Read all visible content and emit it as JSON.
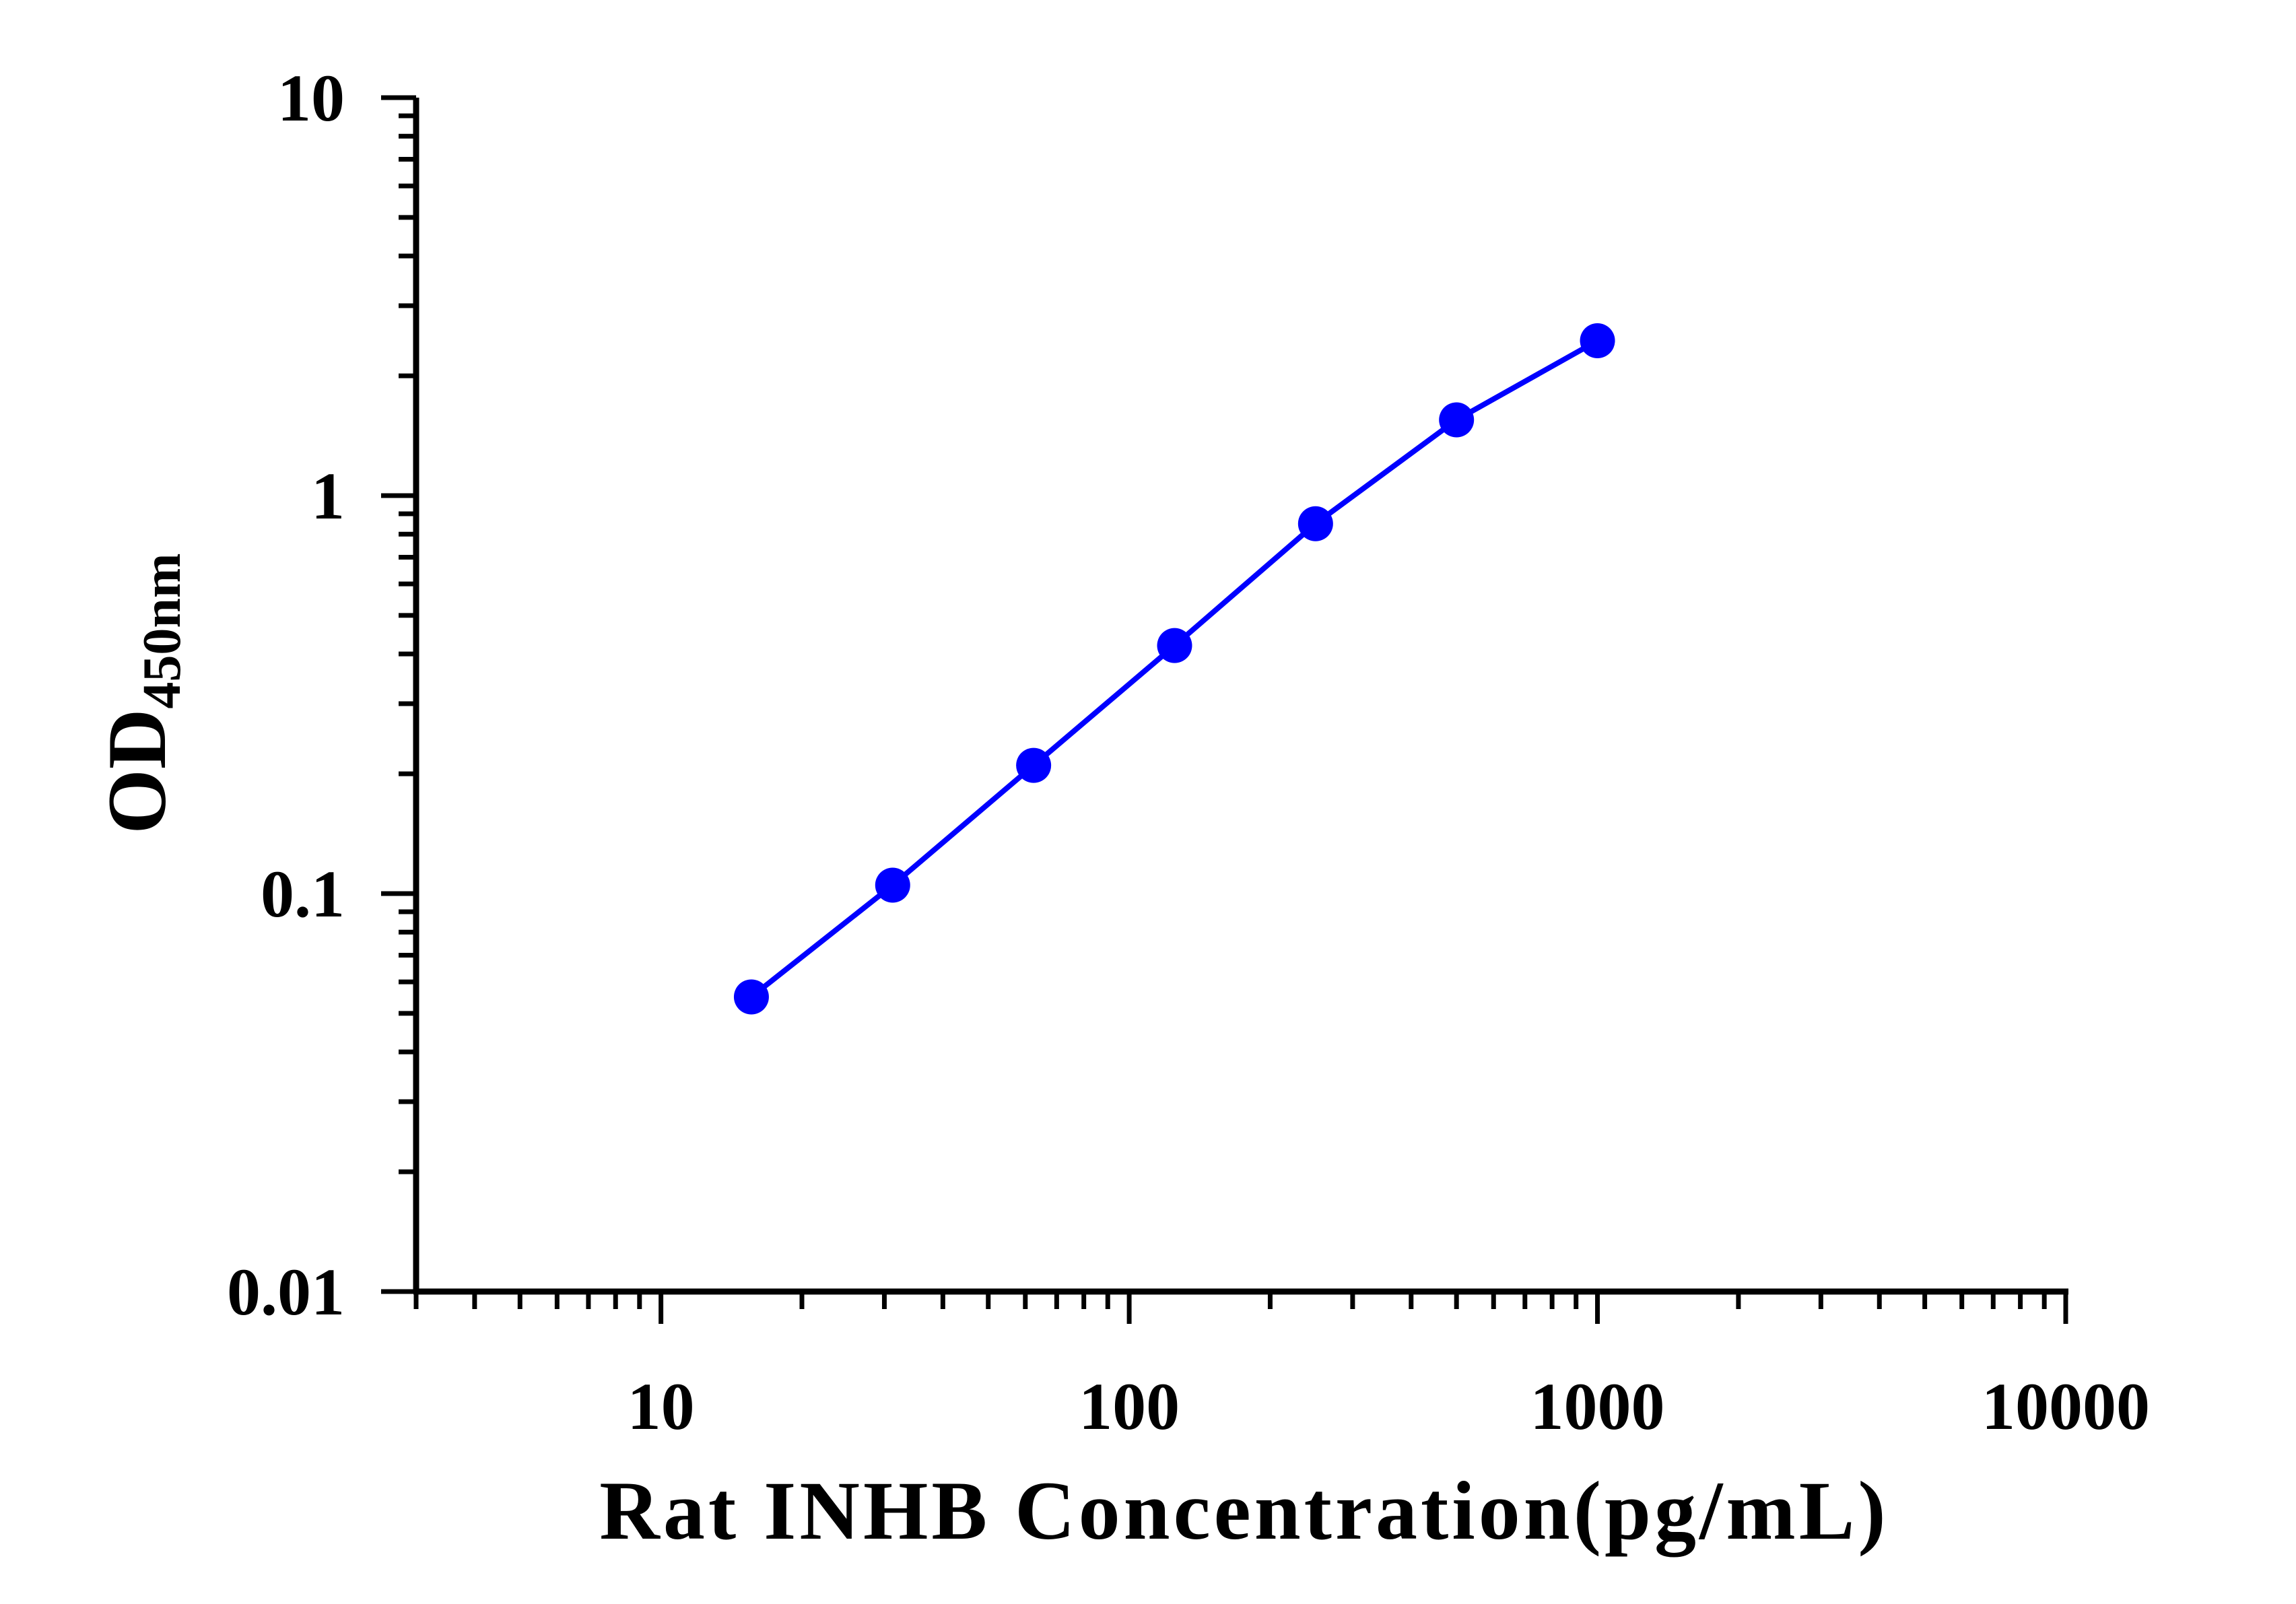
{
  "chart_data": {
    "type": "line",
    "xlabel": "Rat INHB Concentration(pg/mL)",
    "ylabel_main": "OD",
    "ylabel_sub": "450nm",
    "x_scale": "log",
    "y_scale": "log",
    "xlim": [
      3,
      10000
    ],
    "ylim": [
      0.01,
      10
    ],
    "x_ticks": [
      {
        "value": 10,
        "label": "10"
      },
      {
        "value": 100,
        "label": "100"
      },
      {
        "value": 1000,
        "label": "1000"
      },
      {
        "value": 10000,
        "label": "10000"
      }
    ],
    "y_ticks": [
      {
        "value": 0.01,
        "label": "0.01"
      },
      {
        "value": 0.1,
        "label": "0.1"
      },
      {
        "value": 1,
        "label": "1"
      },
      {
        "value": 10,
        "label": "10"
      }
    ],
    "grid": false,
    "series": [
      {
        "color": "#0000ff",
        "marker": "circle",
        "x": [
          15.6,
          31.25,
          62.5,
          125,
          250,
          500,
          1000
        ],
        "y": [
          0.055,
          0.105,
          0.21,
          0.42,
          0.85,
          1.55,
          2.45
        ]
      }
    ]
  }
}
